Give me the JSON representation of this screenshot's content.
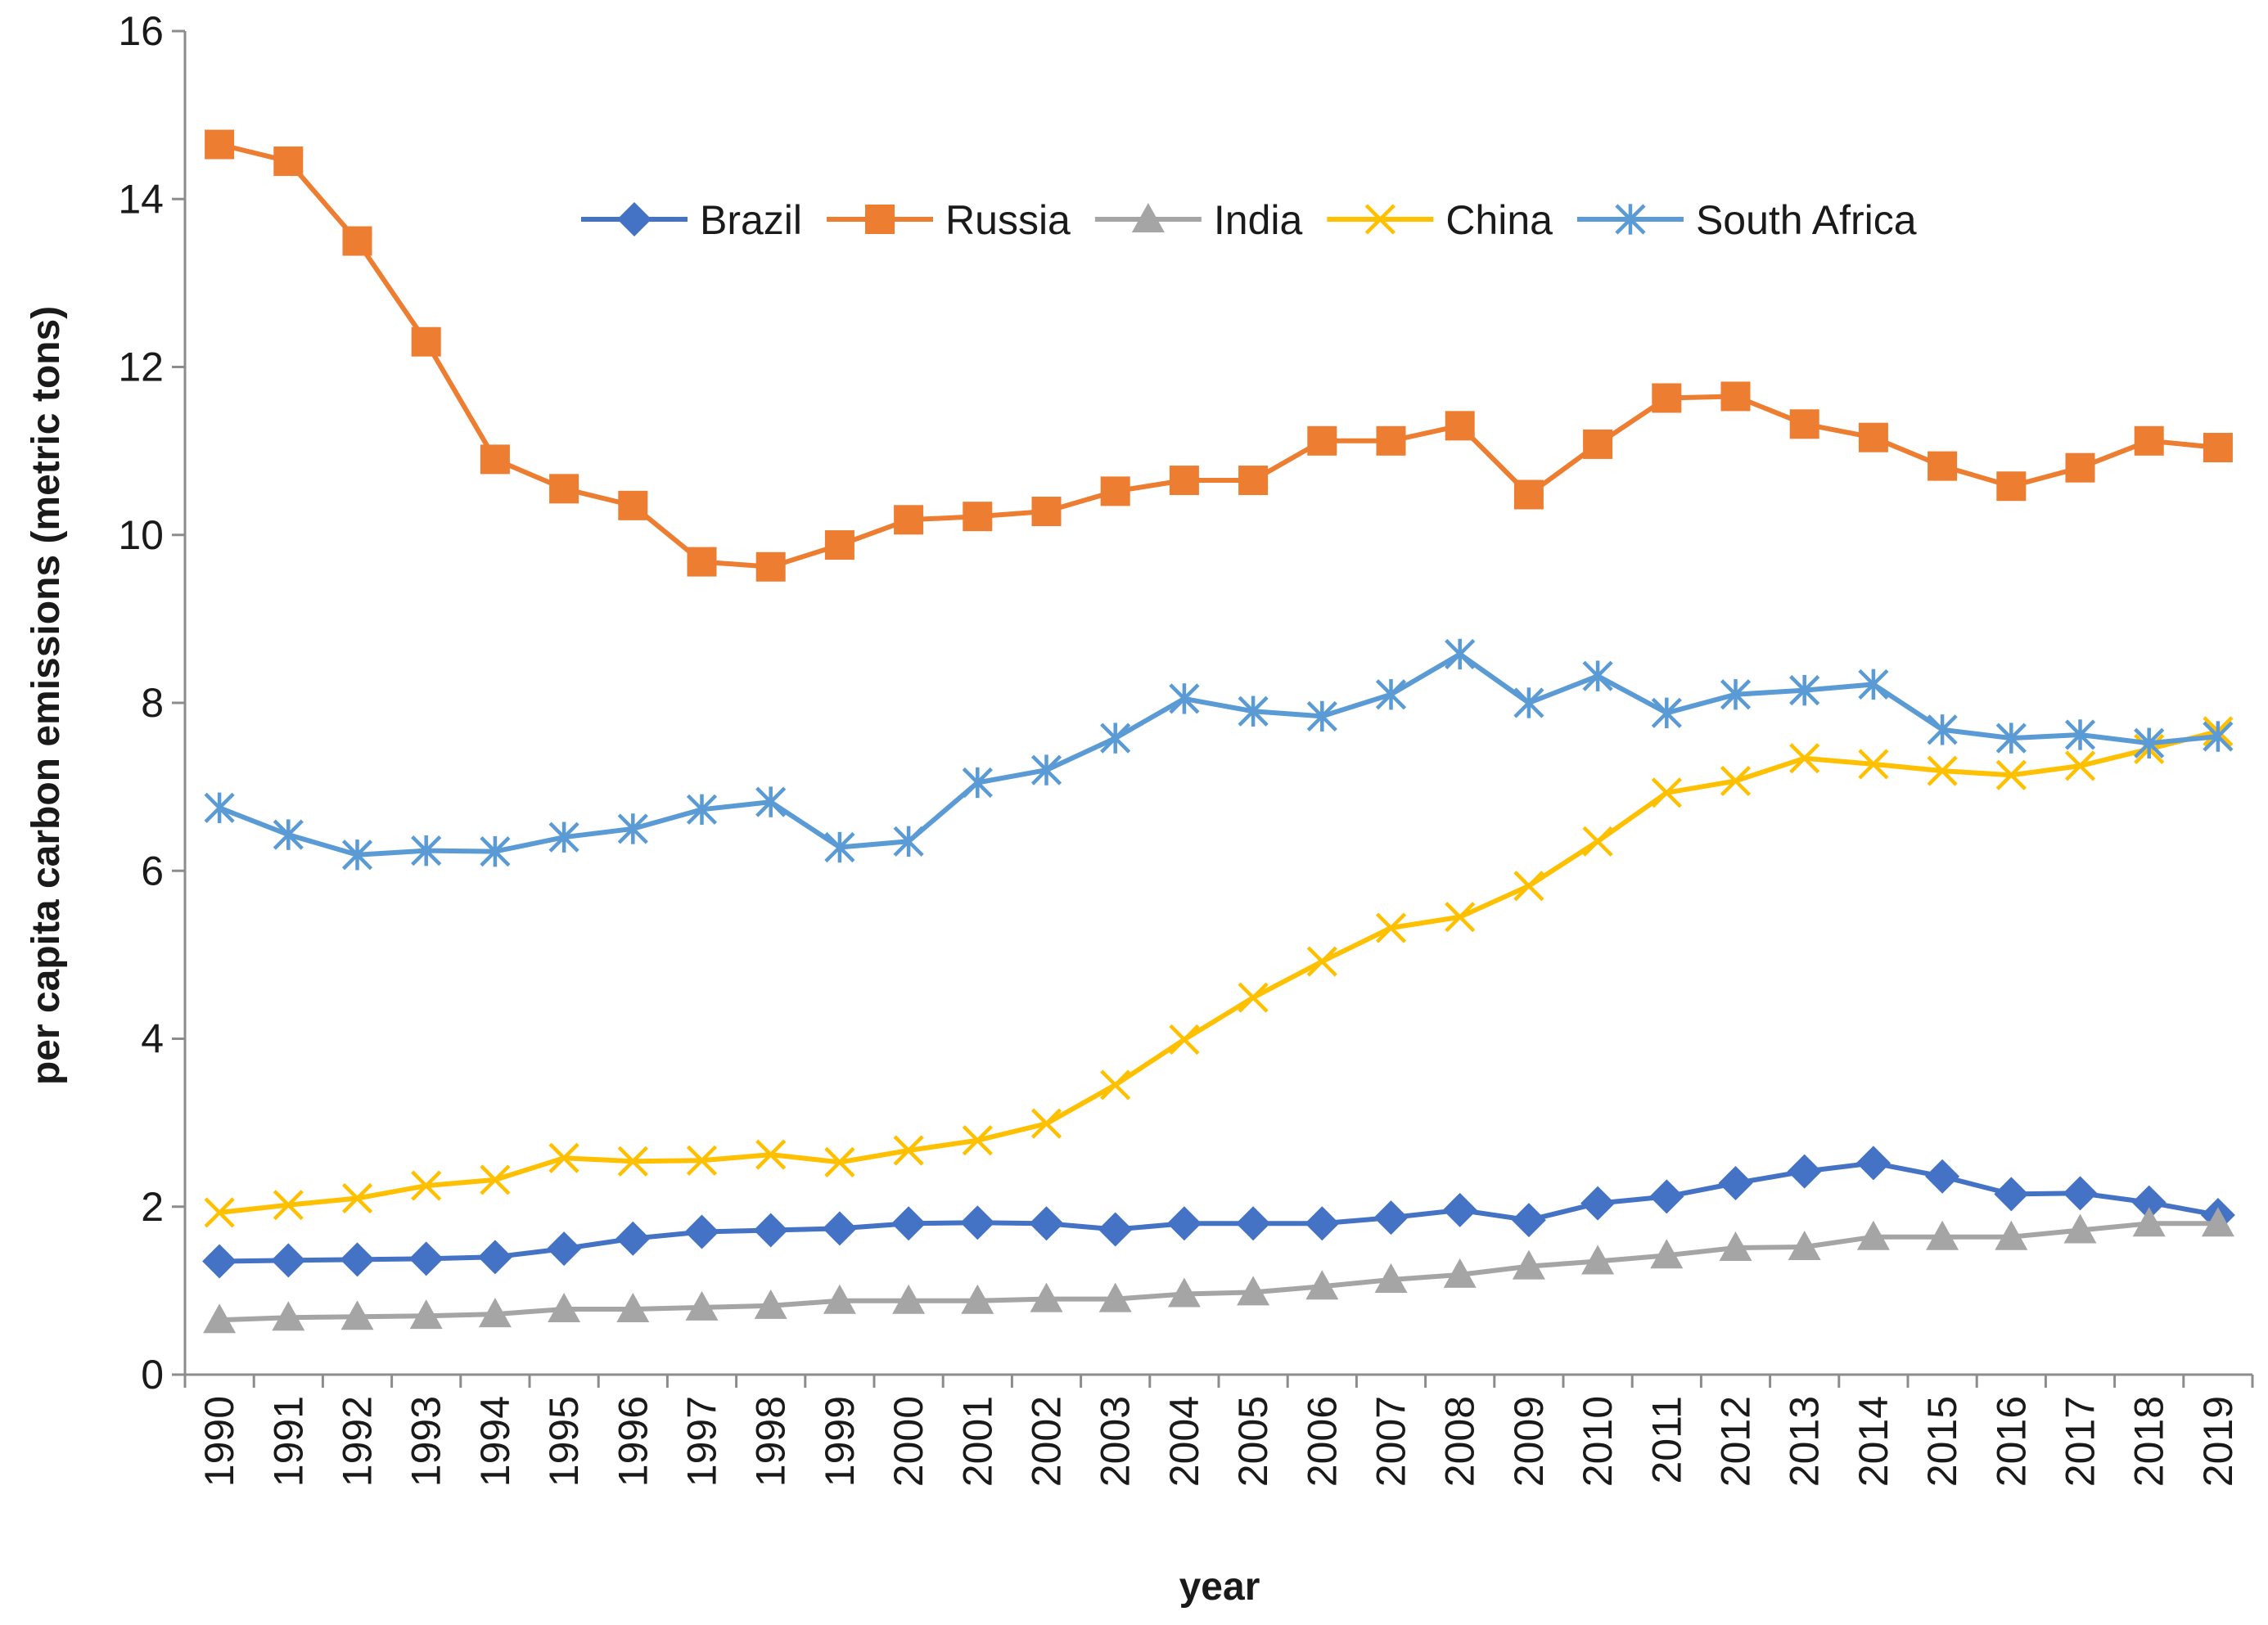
{
  "chart_data": {
    "type": "line",
    "title": "",
    "xlabel": "year",
    "ylabel": "per capita carbon emissions (metric tons)",
    "ylim": [
      0,
      16
    ],
    "yticks": [
      0,
      2,
      4,
      6,
      8,
      10,
      12,
      14,
      16
    ],
    "categories": [
      "1990",
      "1991",
      "1992",
      "1993",
      "1994",
      "1995",
      "1996",
      "1997",
      "1998",
      "1999",
      "2000",
      "2001",
      "2002",
      "2003",
      "2004",
      "2005",
      "2006",
      "2007",
      "2008",
      "2009",
      "2010",
      "2011",
      "2012",
      "2013",
      "2014",
      "2015",
      "2016",
      "2017",
      "2018",
      "2019"
    ],
    "grid": false,
    "legend_position": "top-right",
    "series": [
      {
        "name": "Brazil",
        "color": "#4472C4",
        "marker": "diamond",
        "values": [
          1.35,
          1.36,
          1.37,
          1.38,
          1.4,
          1.5,
          1.62,
          1.7,
          1.72,
          1.74,
          1.8,
          1.81,
          1.8,
          1.73,
          1.8,
          1.8,
          1.8,
          1.87,
          1.96,
          1.84,
          2.04,
          2.12,
          2.28,
          2.42,
          2.52,
          2.36,
          2.15,
          2.16,
          2.05,
          1.9
        ]
      },
      {
        "name": "Russia",
        "color": "#ED7D31",
        "marker": "square",
        "values": [
          14.65,
          14.45,
          13.5,
          12.3,
          10.9,
          10.55,
          10.35,
          9.68,
          9.62,
          9.88,
          10.18,
          10.22,
          10.28,
          10.52,
          10.65,
          10.65,
          11.12,
          11.12,
          11.3,
          10.48,
          11.08,
          11.63,
          11.65,
          11.32,
          11.16,
          10.82,
          10.58,
          10.8,
          11.12,
          11.04
        ]
      },
      {
        "name": "India",
        "color": "#A5A5A5",
        "marker": "triangle",
        "values": [
          0.65,
          0.68,
          0.69,
          0.7,
          0.72,
          0.78,
          0.78,
          0.8,
          0.82,
          0.88,
          0.88,
          0.88,
          0.9,
          0.9,
          0.96,
          0.98,
          1.05,
          1.13,
          1.19,
          1.29,
          1.35,
          1.42,
          1.51,
          1.52,
          1.64,
          1.64,
          1.64,
          1.72,
          1.8,
          1.8
        ]
      },
      {
        "name": "China",
        "color": "#FFC000",
        "marker": "x",
        "values": [
          1.93,
          2.02,
          2.1,
          2.25,
          2.32,
          2.58,
          2.54,
          2.55,
          2.62,
          2.53,
          2.67,
          2.79,
          2.99,
          3.45,
          3.99,
          4.49,
          4.92,
          5.32,
          5.45,
          5.82,
          6.35,
          6.93,
          7.07,
          7.34,
          7.27,
          7.19,
          7.14,
          7.25,
          7.45,
          7.66
        ]
      },
      {
        "name": "South Africa",
        "color": "#5B9BD5",
        "marker": "asterisk",
        "values": [
          6.75,
          6.43,
          6.19,
          6.24,
          6.23,
          6.4,
          6.5,
          6.73,
          6.82,
          6.28,
          6.35,
          7.05,
          7.2,
          7.58,
          8.05,
          7.9,
          7.84,
          8.1,
          8.58,
          8.0,
          8.32,
          7.88,
          8.1,
          8.15,
          8.22,
          7.68,
          7.58,
          7.62,
          7.52,
          7.6
        ]
      }
    ]
  }
}
